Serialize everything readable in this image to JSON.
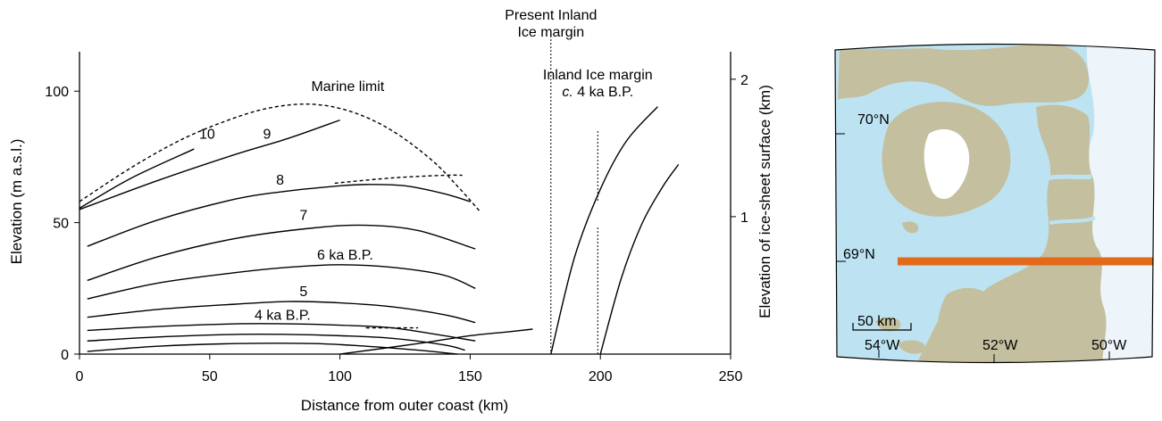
{
  "chart_data": {
    "type": "line",
    "title": "",
    "xlabel": "Distance from outer coast (km)",
    "ylabel": "Elevation (m a.s.l.)",
    "y2label": "Elevation of ice-sheet surface (km)",
    "xlim": [
      0,
      250
    ],
    "ylim": [
      0,
      115
    ],
    "y2lim": [
      0,
      2.2
    ],
    "x_ticks": [
      "0",
      "50",
      "100",
      "150",
      "200",
      "250"
    ],
    "y_ticks": [
      "0",
      "50",
      "100"
    ],
    "y2_ticks": [
      "1",
      "2"
    ],
    "grid": false,
    "legend": "none",
    "series": [
      {
        "name": "Marine limit",
        "style": "dashed",
        "x": [
          0,
          20,
          40,
          60,
          75,
          90,
          105,
          120,
          135,
          145,
          154
        ],
        "y": [
          58,
          71,
          82,
          90,
          94,
          95,
          92,
          85,
          74,
          64,
          54
        ]
      },
      {
        "name": "10",
        "style": "solid",
        "x": [
          0,
          20,
          44
        ],
        "y": [
          55.5,
          67,
          78
        ]
      },
      {
        "name": "9",
        "style": "solid",
        "x": [
          0,
          30,
          60,
          80,
          100
        ],
        "y": [
          55,
          66,
          76,
          82,
          89
        ]
      },
      {
        "name": "8",
        "style": "solid",
        "x": [
          3,
          30,
          60,
          80,
          100,
          110,
          125,
          140,
          150
        ],
        "y": [
          41,
          51,
          59,
          62,
          64,
          64.5,
          64,
          61,
          58
        ]
      },
      {
        "name": "8 (dashed extension)",
        "style": "dashed",
        "x": [
          98,
          120,
          140,
          147
        ],
        "y": [
          65,
          67,
          68,
          68
        ]
      },
      {
        "name": "7",
        "style": "solid",
        "x": [
          3,
          30,
          60,
          90,
          110,
          130,
          152
        ],
        "y": [
          28,
          37,
          44,
          48,
          49,
          47,
          40
        ]
      },
      {
        "name": "6 ka B.P.",
        "style": "solid",
        "x": [
          3,
          30,
          60,
          80,
          100,
          120,
          140,
          152
        ],
        "y": [
          21,
          27,
          31,
          33,
          34,
          33,
          30,
          25
        ]
      },
      {
        "name": "5",
        "style": "solid",
        "x": [
          3,
          30,
          60,
          80,
          100,
          120,
          140,
          152
        ],
        "y": [
          14,
          17,
          19,
          20,
          19.5,
          18,
          15,
          12
        ]
      },
      {
        "name": "4 ka B.P.",
        "style": "solid",
        "x": [
          3,
          30,
          60,
          80,
          100,
          120,
          140,
          152
        ],
        "y": [
          9,
          10.5,
          11.5,
          11.5,
          11,
          10,
          7,
          5
        ]
      },
      {
        "name": "4 ka B.P. (dashed extension)",
        "style": "dashed",
        "x": [
          110,
          130
        ],
        "y": [
          10,
          10
        ]
      },
      {
        "name": "",
        "style": "solid",
        "x": [
          3,
          30,
          60,
          80,
          100,
          120,
          140,
          148
        ],
        "y": [
          5,
          6.5,
          7.5,
          7.5,
          7,
          6,
          3.5,
          1.5
        ]
      },
      {
        "name": "",
        "style": "solid",
        "x": [
          3,
          30,
          60,
          90,
          110,
          130,
          145
        ],
        "y": [
          1,
          3,
          4,
          4,
          3,
          1.5,
          0
        ]
      },
      {
        "name": "",
        "style": "solid",
        "x": [
          100,
          130,
          150,
          165,
          174
        ],
        "y": [
          0,
          4,
          7,
          8.5,
          9.5
        ]
      },
      {
        "name": "Present Inland Ice surface",
        "axis": "right",
        "style": "solid",
        "x": [
          181,
          190,
          200,
          210,
          222
        ],
        "y": [
          0,
          0.7,
          1.2,
          1.55,
          1.8
        ]
      },
      {
        "name": "Inland Ice surface c. 4 ka B.P.",
        "axis": "right",
        "style": "solid",
        "x": [
          200,
          208,
          216,
          224,
          230
        ],
        "y": [
          0,
          0.55,
          0.95,
          1.22,
          1.38
        ]
      }
    ],
    "annotations": [
      {
        "text": "Marine limit",
        "x": 103,
        "y": 100
      },
      {
        "text": "10",
        "x": 49,
        "y": 82
      },
      {
        "text": "9",
        "x": 72,
        "y": 82
      },
      {
        "text": "8",
        "x": 77,
        "y": 64.5
      },
      {
        "text": "7",
        "x": 86,
        "y": 51
      },
      {
        "text": "6 ka B.P.",
        "x": 102,
        "y": 36
      },
      {
        "text": "5",
        "x": 86,
        "y": 22
      },
      {
        "text": "4 ka B.P.",
        "x": 78,
        "y": 13
      },
      {
        "text": "Present Inland\nIce margin",
        "x": 181
      },
      {
        "text": "Inland Ice margin\nc. 4 ka B.P.",
        "x": 199
      }
    ],
    "vlines": [
      {
        "x": 181,
        "style": "dotted",
        "label": "Present Inland Ice margin"
      },
      {
        "x": 199,
        "style": "dotted",
        "label": "Inland Ice margin c. 4 ka B.P."
      }
    ]
  },
  "map": {
    "lat_labels": [
      "70°N",
      "69°N"
    ],
    "lon_labels": [
      "54°W",
      "52°W",
      "50°W"
    ],
    "scale_label": "50 km",
    "colors": {
      "sea": "#bde3f2",
      "land": "#c4bf9e",
      "ice": "#eef5fa",
      "transect": "#e26a1a"
    }
  },
  "colors": {
    "line": "#000000"
  }
}
